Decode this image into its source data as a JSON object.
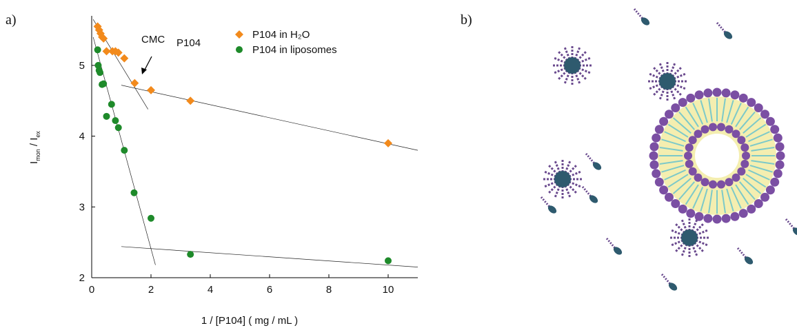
{
  "panel_labels": [
    "a)",
    "b)"
  ],
  "chart_data": {
    "type": "scatter",
    "xlabel": "1 /  [P104]   ( mg / mL )",
    "ylabel": [
      "I",
      "mon",
      " / I",
      "ex"
    ],
    "annotation": [
      "CMC",
      "P104"
    ],
    "xlim": [
      0,
      11
    ],
    "ylim": [
      2,
      5.7
    ],
    "xticks": [
      0,
      2,
      4,
      6,
      8,
      10
    ],
    "yticks": [
      2,
      3,
      4,
      5
    ],
    "series": [
      {
        "name": "P104 in  H₂O",
        "color": "#f28a1c",
        "marker": "diamond",
        "x": [
          0.2,
          0.25,
          0.3,
          0.35,
          0.4,
          0.5,
          0.7,
          0.8,
          0.9,
          1.1,
          1.45,
          2,
          3.33,
          10
        ],
        "values": [
          5.55,
          5.5,
          5.45,
          5.4,
          5.38,
          5.2,
          5.2,
          5.2,
          5.18,
          5.1,
          4.75,
          4.65,
          4.5,
          3.9
        ]
      },
      {
        "name": "P104 in  liposomes",
        "color": "#1e8a2a",
        "marker": "circle",
        "x": [
          0.2,
          0.22,
          0.25,
          0.28,
          0.35,
          0.4,
          0.5,
          0.67,
          0.8,
          0.9,
          1.1,
          1.43,
          2,
          3.33,
          10
        ],
        "values": [
          5.22,
          5.0,
          4.93,
          4.9,
          4.73,
          4.74,
          4.28,
          4.45,
          4.22,
          4.12,
          3.8,
          3.2,
          2.84,
          2.33,
          2.24
        ]
      }
    ],
    "fit_lines": [
      {
        "x": [
          0.05,
          1.9
        ],
        "values": [
          5.65,
          4.38
        ]
      },
      {
        "x": [
          1,
          11
        ],
        "values": [
          4.72,
          3.8
        ]
      },
      {
        "x": [
          0.05,
          2.15
        ],
        "values": [
          5.4,
          2.18
        ]
      },
      {
        "x": [
          1,
          11
        ],
        "values": [
          2.44,
          2.15
        ]
      }
    ]
  }
}
